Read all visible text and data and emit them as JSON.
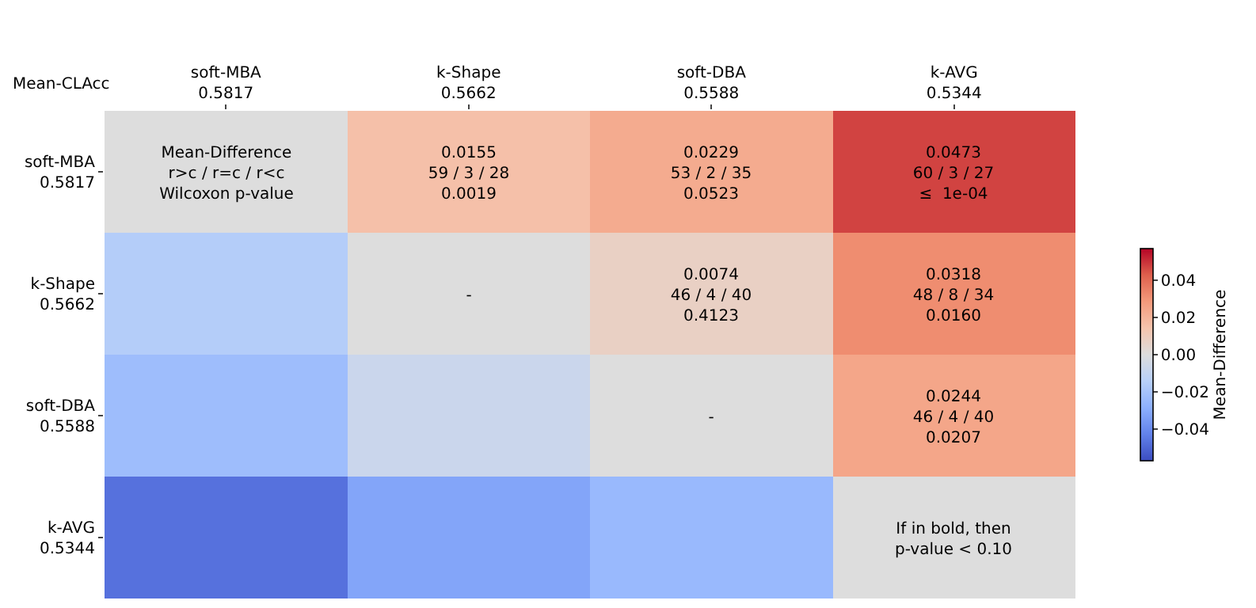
{
  "chart_data": {
    "type": "heatmap",
    "categories": [
      "soft-MBA\n0.5817",
      "k-Shape\n0.5662",
      "soft-DBA\n0.5588",
      "k-AVG\n0.5344"
    ],
    "y_categories": [
      "soft-MBA\n0.5817",
      "k-Shape\n0.5662",
      "soft-DBA\n0.5588",
      "k-AVG\n0.5344"
    ],
    "cells": [
      [
        0,
        0.0155,
        0.0229,
        0.0473
      ],
      [
        -0.0155,
        0,
        0.0074,
        0.0318
      ],
      [
        -0.0229,
        -0.0074,
        0,
        0.0244
      ],
      [
        -0.0473,
        -0.0318,
        -0.0244,
        0
      ]
    ],
    "cell_labels": [
      [
        "Mean-Difference\nr>c / r=c / r<c\nWilcoxon p-value",
        "0.0155\n59 / 3 / 28\n0.0019",
        "0.0229\n53 / 2 / 35\n0.0523",
        "0.0473\n60 / 3 / 27\n≤  1e-04"
      ],
      [
        null,
        "-",
        "0.0074\n46 / 4 / 40\n0.4123",
        "0.0318\n48 / 8 / 34\n0.0160"
      ],
      [
        null,
        null,
        "-",
        "0.0244\n46 / 4 / 40\n0.0207"
      ],
      [
        null,
        null,
        null,
        "If in bold, then\np-value < 0.10"
      ]
    ],
    "clim": [
      -0.057,
      0.057
    ],
    "cticks": [
      {
        "value": -0.04,
        "label": "−0.04"
      },
      {
        "value": -0.02,
        "label": "−0.02"
      },
      {
        "value": 0,
        "label": "0.00"
      },
      {
        "value": 0.02,
        "label": "0.02"
      },
      {
        "value": 0.04,
        "label": "0.04"
      }
    ],
    "clabel": "Mean-Difference",
    "annotations": [
      "Mean-CLAcc"
    ]
  }
}
